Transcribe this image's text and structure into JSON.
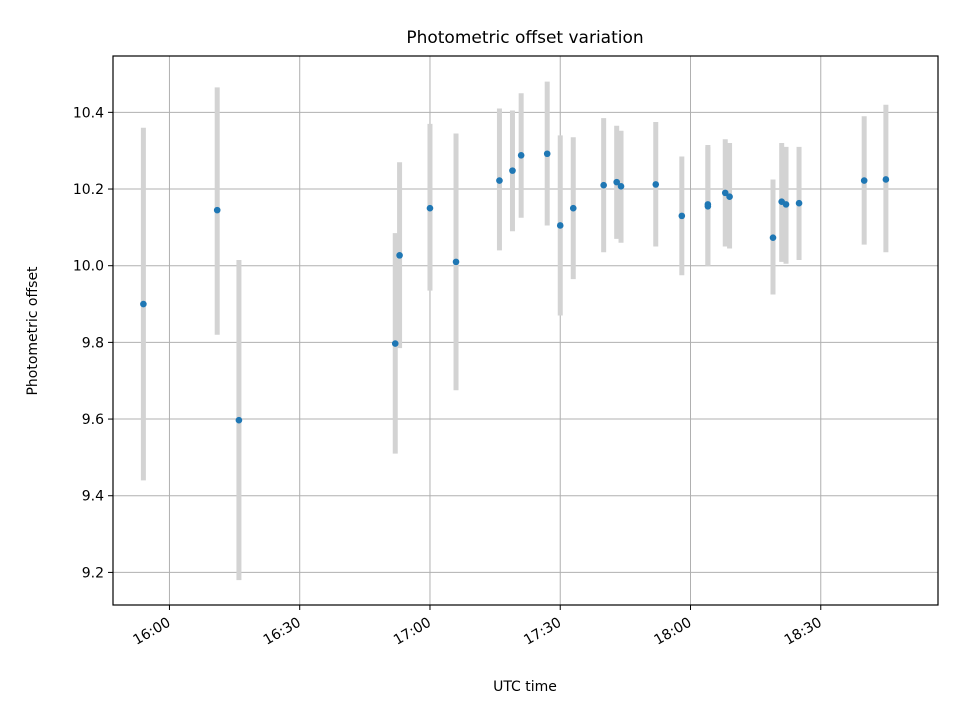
{
  "chart_data": {
    "type": "scatter",
    "title": "Photometric offset variation",
    "xlabel": "UTC time",
    "ylabel": "Photometric offset",
    "x_axis": "time",
    "xlim": [
      "15:47",
      "18:57"
    ],
    "ylim": [
      9.115,
      10.547
    ],
    "x_ticks": [
      "16:00",
      "16:30",
      "17:00",
      "17:30",
      "18:00",
      "18:30"
    ],
    "y_ticks": [
      "9.2",
      "9.4",
      "9.6",
      "9.8",
      "10.0",
      "10.2",
      "10.4"
    ],
    "grid": true,
    "colors": {
      "marker": "#1f77b4",
      "errorbar": "#d3d3d3",
      "grid": "#b0b0b0"
    },
    "series": [
      {
        "points": [
          {
            "t": "15:54",
            "y": 9.9,
            "lo": 9.44,
            "hi": 10.36
          },
          {
            "t": "16:11",
            "y": 10.145,
            "lo": 9.82,
            "hi": 10.465
          },
          {
            "t": "16:16",
            "y": 9.597,
            "lo": 9.18,
            "hi": 10.015
          },
          {
            "t": "16:52",
            "y": 9.797,
            "lo": 9.51,
            "hi": 10.085
          },
          {
            "t": "16:53",
            "y": 10.027,
            "lo": 9.785,
            "hi": 10.27
          },
          {
            "t": "17:00",
            "y": 10.15,
            "lo": 9.935,
            "hi": 10.37
          },
          {
            "t": "17:06",
            "y": 10.01,
            "lo": 9.675,
            "hi": 10.345
          },
          {
            "t": "17:16",
            "y": 10.222,
            "lo": 10.04,
            "hi": 10.41
          },
          {
            "t": "17:19",
            "y": 10.248,
            "lo": 10.09,
            "hi": 10.405
          },
          {
            "t": "17:21",
            "y": 10.288,
            "lo": 10.125,
            "hi": 10.45
          },
          {
            "t": "17:27",
            "y": 10.292,
            "lo": 10.105,
            "hi": 10.48
          },
          {
            "t": "17:30",
            "y": 10.105,
            "lo": 9.87,
            "hi": 10.34
          },
          {
            "t": "17:33",
            "y": 10.15,
            "lo": 9.965,
            "hi": 10.335
          },
          {
            "t": "17:40",
            "y": 10.21,
            "lo": 10.035,
            "hi": 10.385
          },
          {
            "t": "17:43",
            "y": 10.218,
            "lo": 10.07,
            "hi": 10.365
          },
          {
            "t": "17:44",
            "y": 10.207,
            "lo": 10.06,
            "hi": 10.352
          },
          {
            "t": "17:52",
            "y": 10.212,
            "lo": 10.05,
            "hi": 10.375
          },
          {
            "t": "17:58",
            "y": 10.13,
            "lo": 9.975,
            "hi": 10.285
          },
          {
            "t": "18:04",
            "y": 10.155,
            "lo": 10.0,
            "hi": 10.31
          },
          {
            "t": "18:04",
            "y": 10.16,
            "lo": 10.0,
            "hi": 10.315
          },
          {
            "t": "18:08",
            "y": 10.19,
            "lo": 10.05,
            "hi": 10.33
          },
          {
            "t": "18:09",
            "y": 10.18,
            "lo": 10.045,
            "hi": 10.32
          },
          {
            "t": "18:19",
            "y": 10.073,
            "lo": 9.925,
            "hi": 10.225
          },
          {
            "t": "18:21",
            "y": 10.167,
            "lo": 10.01,
            "hi": 10.32
          },
          {
            "t": "18:22",
            "y": 10.16,
            "lo": 10.005,
            "hi": 10.31
          },
          {
            "t": "18:25",
            "y": 10.163,
            "lo": 10.015,
            "hi": 10.31
          },
          {
            "t": "18:40",
            "y": 10.222,
            "lo": 10.055,
            "hi": 10.39
          },
          {
            "t": "18:45",
            "y": 10.225,
            "lo": 10.035,
            "hi": 10.42
          }
        ]
      }
    ]
  }
}
